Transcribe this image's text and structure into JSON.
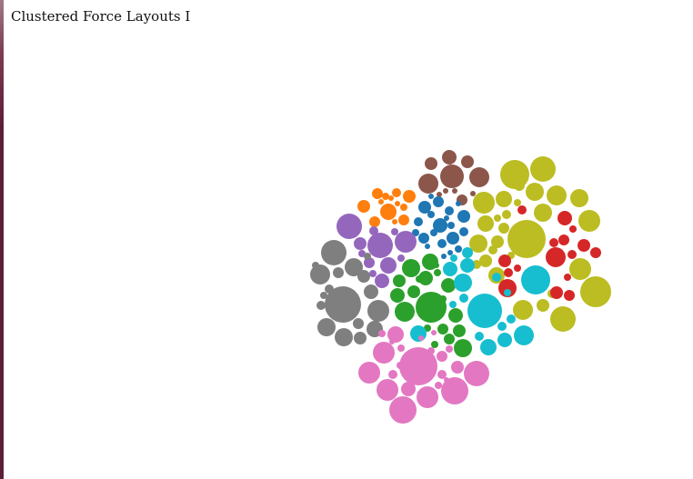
{
  "page": {
    "title": "Clustered Force Layouts I"
  },
  "palette": {
    "brown": "#8c564b",
    "orange": "#ff7f0e",
    "blue": "#1f77b4",
    "olive": "#bcbd22",
    "red": "#d62728",
    "purple": "#9467bd",
    "gray": "#7f7f7f",
    "green": "#2ca02c",
    "cyan": "#17becf",
    "pink": "#e377c2"
  },
  "clusters": [
    "brown",
    "orange",
    "blue",
    "olive",
    "red",
    "purple",
    "gray",
    "green",
    "cyan",
    "pink"
  ]
}
